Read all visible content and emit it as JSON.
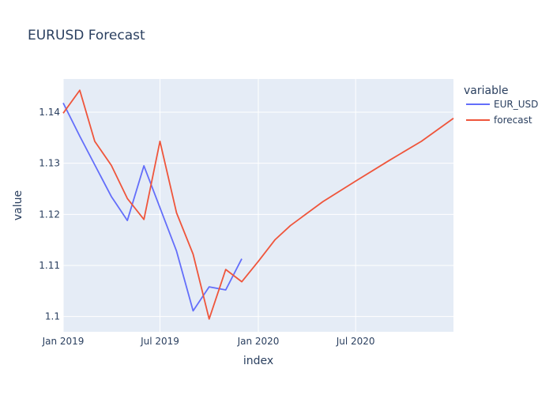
{
  "chart_data": {
    "type": "line",
    "title": "EURUSD Forecast",
    "xlabel": "index",
    "ylabel": "value",
    "xlim": [
      "2019-01-01",
      "2020-12-31"
    ],
    "ylim": [
      1.097,
      1.1465
    ],
    "x_ticks": [
      {
        "date": "2019-01-01",
        "label": "Jan 2019"
      },
      {
        "date": "2019-07-01",
        "label": "Jul 2019"
      },
      {
        "date": "2020-01-01",
        "label": "Jan 2020"
      },
      {
        "date": "2020-07-01",
        "label": "Jul 2020"
      }
    ],
    "y_ticks": [
      1.1,
      1.11,
      1.12,
      1.13,
      1.14
    ],
    "y_tick_labels": [
      "1.1",
      "1.11",
      "1.12",
      "1.13",
      "1.14"
    ],
    "grid": true,
    "legend": {
      "title": "variable",
      "placement": "right"
    },
    "series": [
      {
        "name": "EUR_USD",
        "color": "#636efa",
        "points": [
          {
            "x": "2019-01-01",
            "y": 1.1418
          },
          {
            "x": "2019-02-01",
            "y": 1.1353
          },
          {
            "x": "2019-03-01",
            "y": 1.1297
          },
          {
            "x": "2019-04-01",
            "y": 1.1235
          },
          {
            "x": "2019-05-01",
            "y": 1.1188
          },
          {
            "x": "2019-06-01",
            "y": 1.1295
          },
          {
            "x": "2019-07-01",
            "y": 1.1213
          },
          {
            "x": "2019-08-01",
            "y": 1.1128
          },
          {
            "x": "2019-09-01",
            "y": 1.1011
          },
          {
            "x": "2019-10-01",
            "y": 1.1058
          },
          {
            "x": "2019-11-01",
            "y": 1.1052
          },
          {
            "x": "2019-12-01",
            "y": 1.1113
          }
        ]
      },
      {
        "name": "forecast",
        "color": "#ef553b",
        "points": [
          {
            "x": "2019-01-01",
            "y": 1.1398
          },
          {
            "x": "2019-02-01",
            "y": 1.1443
          },
          {
            "x": "2019-03-01",
            "y": 1.1343
          },
          {
            "x": "2019-04-01",
            "y": 1.1296
          },
          {
            "x": "2019-05-01",
            "y": 1.1231
          },
          {
            "x": "2019-06-01",
            "y": 1.119
          },
          {
            "x": "2019-07-01",
            "y": 1.1343
          },
          {
            "x": "2019-08-01",
            "y": 1.1203
          },
          {
            "x": "2019-09-01",
            "y": 1.1122
          },
          {
            "x": "2019-10-01",
            "y": 1.0995
          },
          {
            "x": "2019-11-01",
            "y": 1.1092
          },
          {
            "x": "2019-12-01",
            "y": 1.1068
          },
          {
            "x": "2020-01-01",
            "y": 1.1108
          },
          {
            "x": "2020-02-01",
            "y": 1.115
          },
          {
            "x": "2020-03-01",
            "y": 1.1178
          },
          {
            "x": "2020-05-01",
            "y": 1.1225
          },
          {
            "x": "2020-07-01",
            "y": 1.1265
          },
          {
            "x": "2020-09-01",
            "y": 1.1305
          },
          {
            "x": "2020-11-01",
            "y": 1.1343
          },
          {
            "x": "2020-12-31",
            "y": 1.1388
          }
        ]
      }
    ]
  }
}
